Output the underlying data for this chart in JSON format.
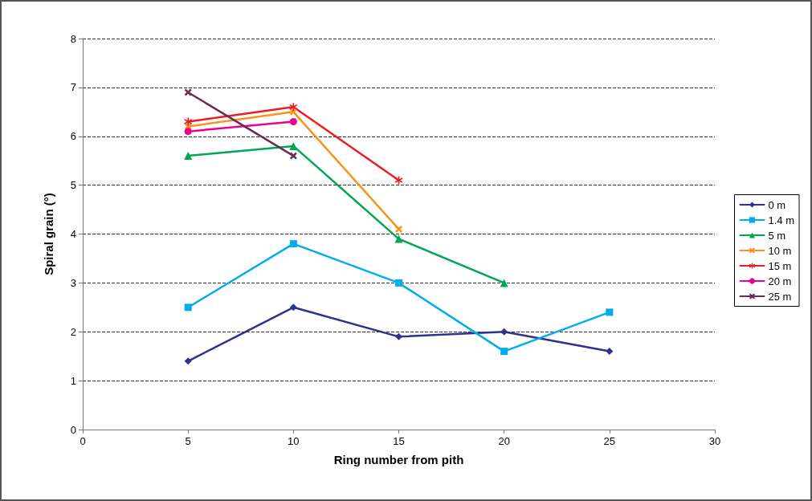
{
  "chart_data": {
    "type": "line",
    "xlabel": "Ring number from pith",
    "ylabel": "Spiral grain (°)",
    "xlim": [
      0,
      30
    ],
    "xticks": [
      0,
      5,
      10,
      15,
      20,
      25,
      30
    ],
    "ylim": [
      0,
      8
    ],
    "yticks": [
      0,
      1,
      2,
      3,
      4,
      5,
      6,
      7,
      8
    ],
    "grid": "y",
    "legend": "right",
    "series": [
      {
        "name": "0 m",
        "color": "#2e3192",
        "marker": "diamond",
        "x": [
          5,
          10,
          15,
          20,
          25
        ],
        "values": [
          1.4,
          2.5,
          1.9,
          2.0,
          1.6
        ]
      },
      {
        "name": "1.4 m",
        "color": "#00aeef",
        "marker": "square",
        "x": [
          5,
          10,
          15,
          20,
          25
        ],
        "values": [
          2.5,
          3.8,
          3.0,
          1.6,
          2.4
        ]
      },
      {
        "name": "5 m",
        "color": "#00a651",
        "marker": "triangle",
        "x": [
          5,
          10,
          15,
          20
        ],
        "values": [
          5.6,
          5.8,
          3.9,
          3.0
        ]
      },
      {
        "name": "10 m",
        "color": "#f7941d",
        "marker": "cross",
        "x": [
          5,
          10,
          15
        ],
        "values": [
          6.2,
          6.5,
          4.1
        ]
      },
      {
        "name": "15 m",
        "color": "#ed1c24",
        "marker": "star",
        "x": [
          5,
          10,
          15
        ],
        "values": [
          6.3,
          6.6,
          5.1
        ]
      },
      {
        "name": "20 m",
        "color": "#ec008c",
        "marker": "circle",
        "x": [
          5,
          10
        ],
        "values": [
          6.1,
          6.3
        ]
      },
      {
        "name": "25 m",
        "color": "#6d2a4f",
        "marker": "cross",
        "x": [
          5,
          10
        ],
        "values": [
          6.9,
          5.6
        ]
      }
    ]
  }
}
